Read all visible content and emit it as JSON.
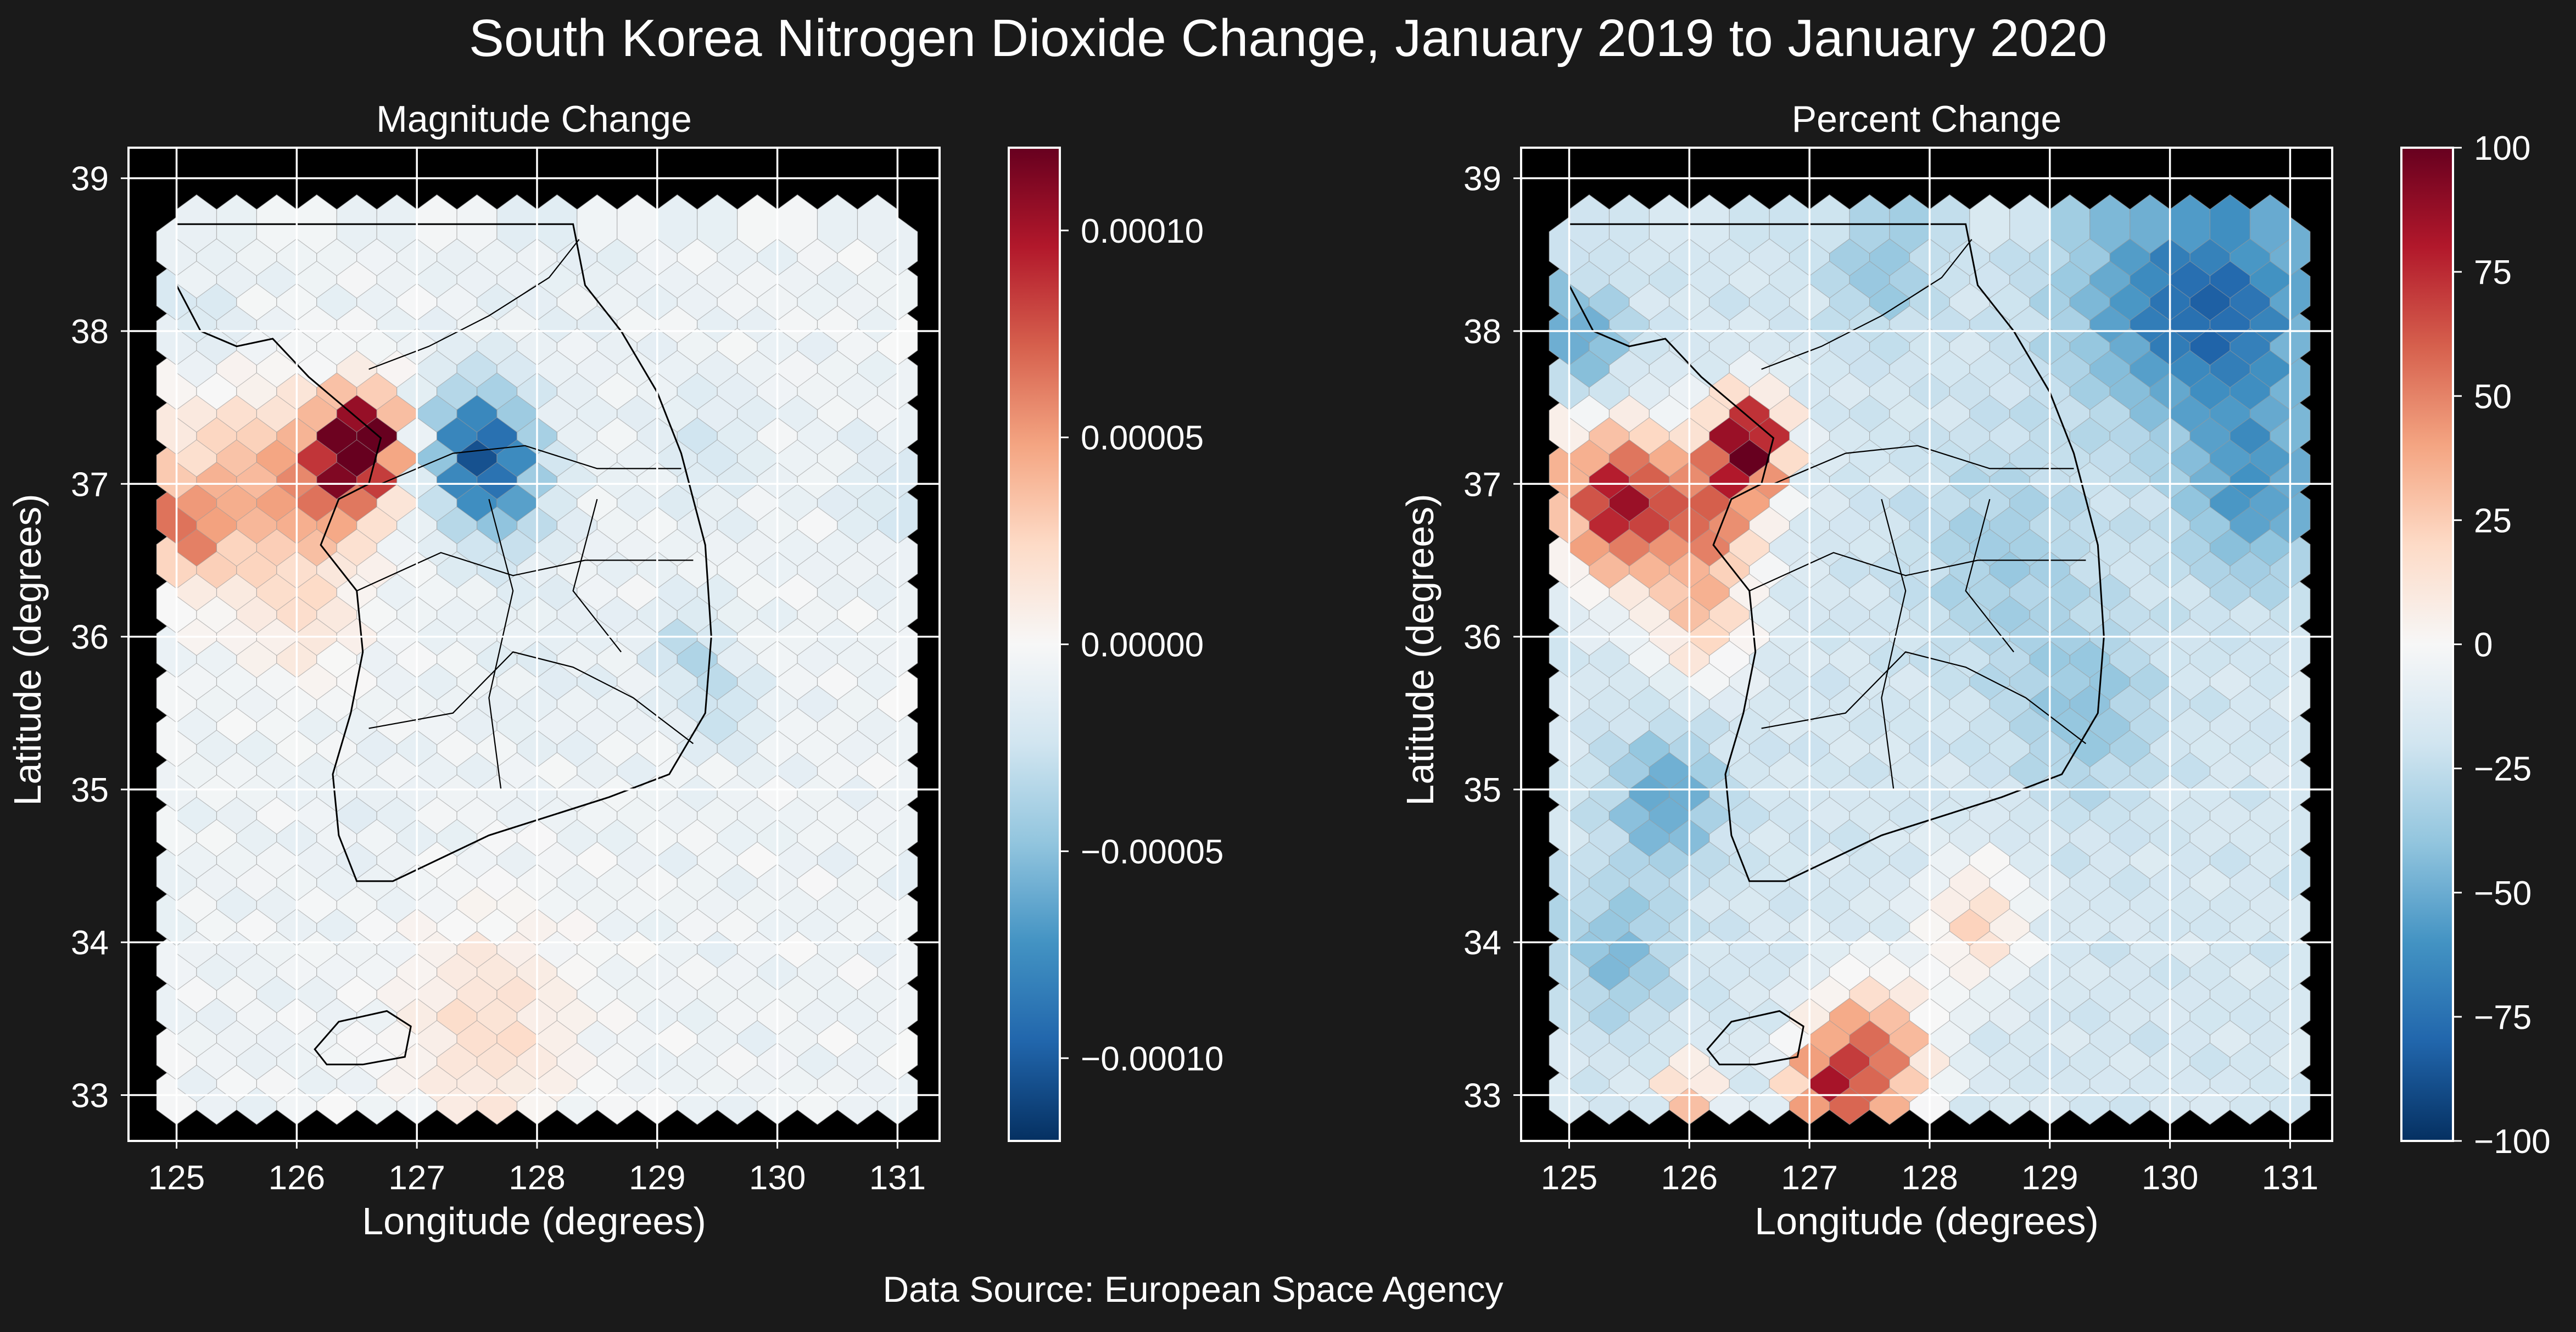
{
  "figure": {
    "title": "South Korea Nitrogen Dioxide Change, January 2019 to January 2020",
    "source": "Data Source: European Space Agency",
    "background": "#1a1a1a",
    "plot_background": "#000000",
    "colormap": "RdBu_r"
  },
  "chart_data": [
    {
      "type": "heatmap",
      "subtype": "hexbin-map",
      "title": "Magnitude Change",
      "xlabel": "Longitude (degrees)",
      "ylabel": "Latitude (degrees)",
      "xlim": [
        124.6,
        131.35
      ],
      "ylim": [
        32.7,
        39.2
      ],
      "xticks": [
        125,
        126,
        127,
        128,
        129,
        130,
        131
      ],
      "yticks": [
        33,
        34,
        35,
        36,
        37,
        38,
        39
      ],
      "grid": true,
      "colorbar": {
        "range": [
          -0.00012,
          0.00012
        ],
        "ticks": [
          -0.0001,
          -5e-05,
          0,
          5e-05,
          0.0001
        ],
        "tick_labels": [
          "−0.00010",
          "−0.00005",
          "0.00000",
          "0.00005",
          "0.00010"
        ]
      },
      "hotspots": [
        {
          "x": 126.55,
          "y": 37.35,
          "value": 0.00012,
          "sigma": 0.22
        },
        {
          "x": 126.3,
          "y": 37.1,
          "value": 6e-05,
          "sigma": 0.3
        },
        {
          "x": 125.5,
          "y": 37.0,
          "value": 4e-05,
          "sigma": 0.45
        },
        {
          "x": 125.05,
          "y": 36.75,
          "value": 5e-05,
          "sigma": 0.18
        },
        {
          "x": 127.5,
          "y": 37.3,
          "value": -9e-05,
          "sigma": 0.3
        },
        {
          "x": 127.75,
          "y": 37.0,
          "value": -4e-05,
          "sigma": 0.3
        },
        {
          "x": 129.25,
          "y": 36.0,
          "value": -3.5e-05,
          "sigma": 0.2
        },
        {
          "x": 129.55,
          "y": 35.6,
          "value": -3e-05,
          "sigma": 0.2
        },
        {
          "x": 127.6,
          "y": 33.5,
          "value": 2e-05,
          "sigma": 0.5
        },
        {
          "x": 126.1,
          "y": 36.2,
          "value": 1.5e-05,
          "sigma": 0.3
        },
        {
          "x": 129.4,
          "y": 37.3,
          "value": -2e-05,
          "sigma": 0.3
        },
        {
          "x": 130.9,
          "y": 37.0,
          "value": -2e-05,
          "sigma": 0.25
        },
        {
          "x": 125.2,
          "y": 38.1,
          "value": -2e-05,
          "sigma": 0.25
        },
        {
          "x": 126.6,
          "y": 34.9,
          "value": -1e-05,
          "sigma": 0.3
        },
        {
          "x": 128.1,
          "y": 35.9,
          "value": -1.2e-05,
          "sigma": 0.4
        },
        {
          "x": 128.2,
          "y": 38.5,
          "value": -1e-05,
          "sigma": 0.5
        }
      ],
      "base_value": -6e-06
    },
    {
      "type": "heatmap",
      "subtype": "hexbin-map",
      "title": "Percent Change",
      "xlabel": "Longitude (degrees)",
      "ylabel": "Latitude (degrees)",
      "xlim": [
        124.6,
        131.35
      ],
      "ylim": [
        32.7,
        39.2
      ],
      "xticks": [
        125,
        126,
        127,
        128,
        129,
        130,
        131
      ],
      "yticks": [
        33,
        34,
        35,
        36,
        37,
        38,
        39
      ],
      "grid": true,
      "colorbar": {
        "range": [
          -100,
          100
        ],
        "ticks": [
          -100,
          -75,
          -50,
          -25,
          0,
          25,
          50,
          75,
          100
        ],
        "tick_labels": [
          "−100",
          "−75",
          "−50",
          "−25",
          "0",
          "25",
          "50",
          "75",
          "100"
        ]
      },
      "hotspots": [
        {
          "x": 126.5,
          "y": 37.35,
          "value": 100,
          "sigma": 0.22
        },
        {
          "x": 125.4,
          "y": 36.95,
          "value": 85,
          "sigma": 0.35
        },
        {
          "x": 126.2,
          "y": 36.9,
          "value": 45,
          "sigma": 0.3
        },
        {
          "x": 126.1,
          "y": 36.2,
          "value": 25,
          "sigma": 0.3
        },
        {
          "x": 127.5,
          "y": 33.3,
          "value": 60,
          "sigma": 0.35
        },
        {
          "x": 127.1,
          "y": 33.1,
          "value": 40,
          "sigma": 0.2
        },
        {
          "x": 126.0,
          "y": 33.1,
          "value": 40,
          "sigma": 0.15
        },
        {
          "x": 130.45,
          "y": 38.2,
          "value": -75,
          "sigma": 0.55
        },
        {
          "x": 129.6,
          "y": 38.3,
          "value": -40,
          "sigma": 0.5
        },
        {
          "x": 130.7,
          "y": 37.0,
          "value": -55,
          "sigma": 0.4
        },
        {
          "x": 127.6,
          "y": 38.5,
          "value": -40,
          "sigma": 0.3
        },
        {
          "x": 125.1,
          "y": 38.0,
          "value": -55,
          "sigma": 0.25
        },
        {
          "x": 125.8,
          "y": 35.0,
          "value": -55,
          "sigma": 0.3
        },
        {
          "x": 125.4,
          "y": 34.0,
          "value": -45,
          "sigma": 0.3
        },
        {
          "x": 129.3,
          "y": 35.6,
          "value": -40,
          "sigma": 0.4
        },
        {
          "x": 128.6,
          "y": 36.6,
          "value": -35,
          "sigma": 0.5
        },
        {
          "x": 128.4,
          "y": 34.2,
          "value": 20,
          "sigma": 0.3
        }
      ],
      "base_value": -18
    }
  ]
}
